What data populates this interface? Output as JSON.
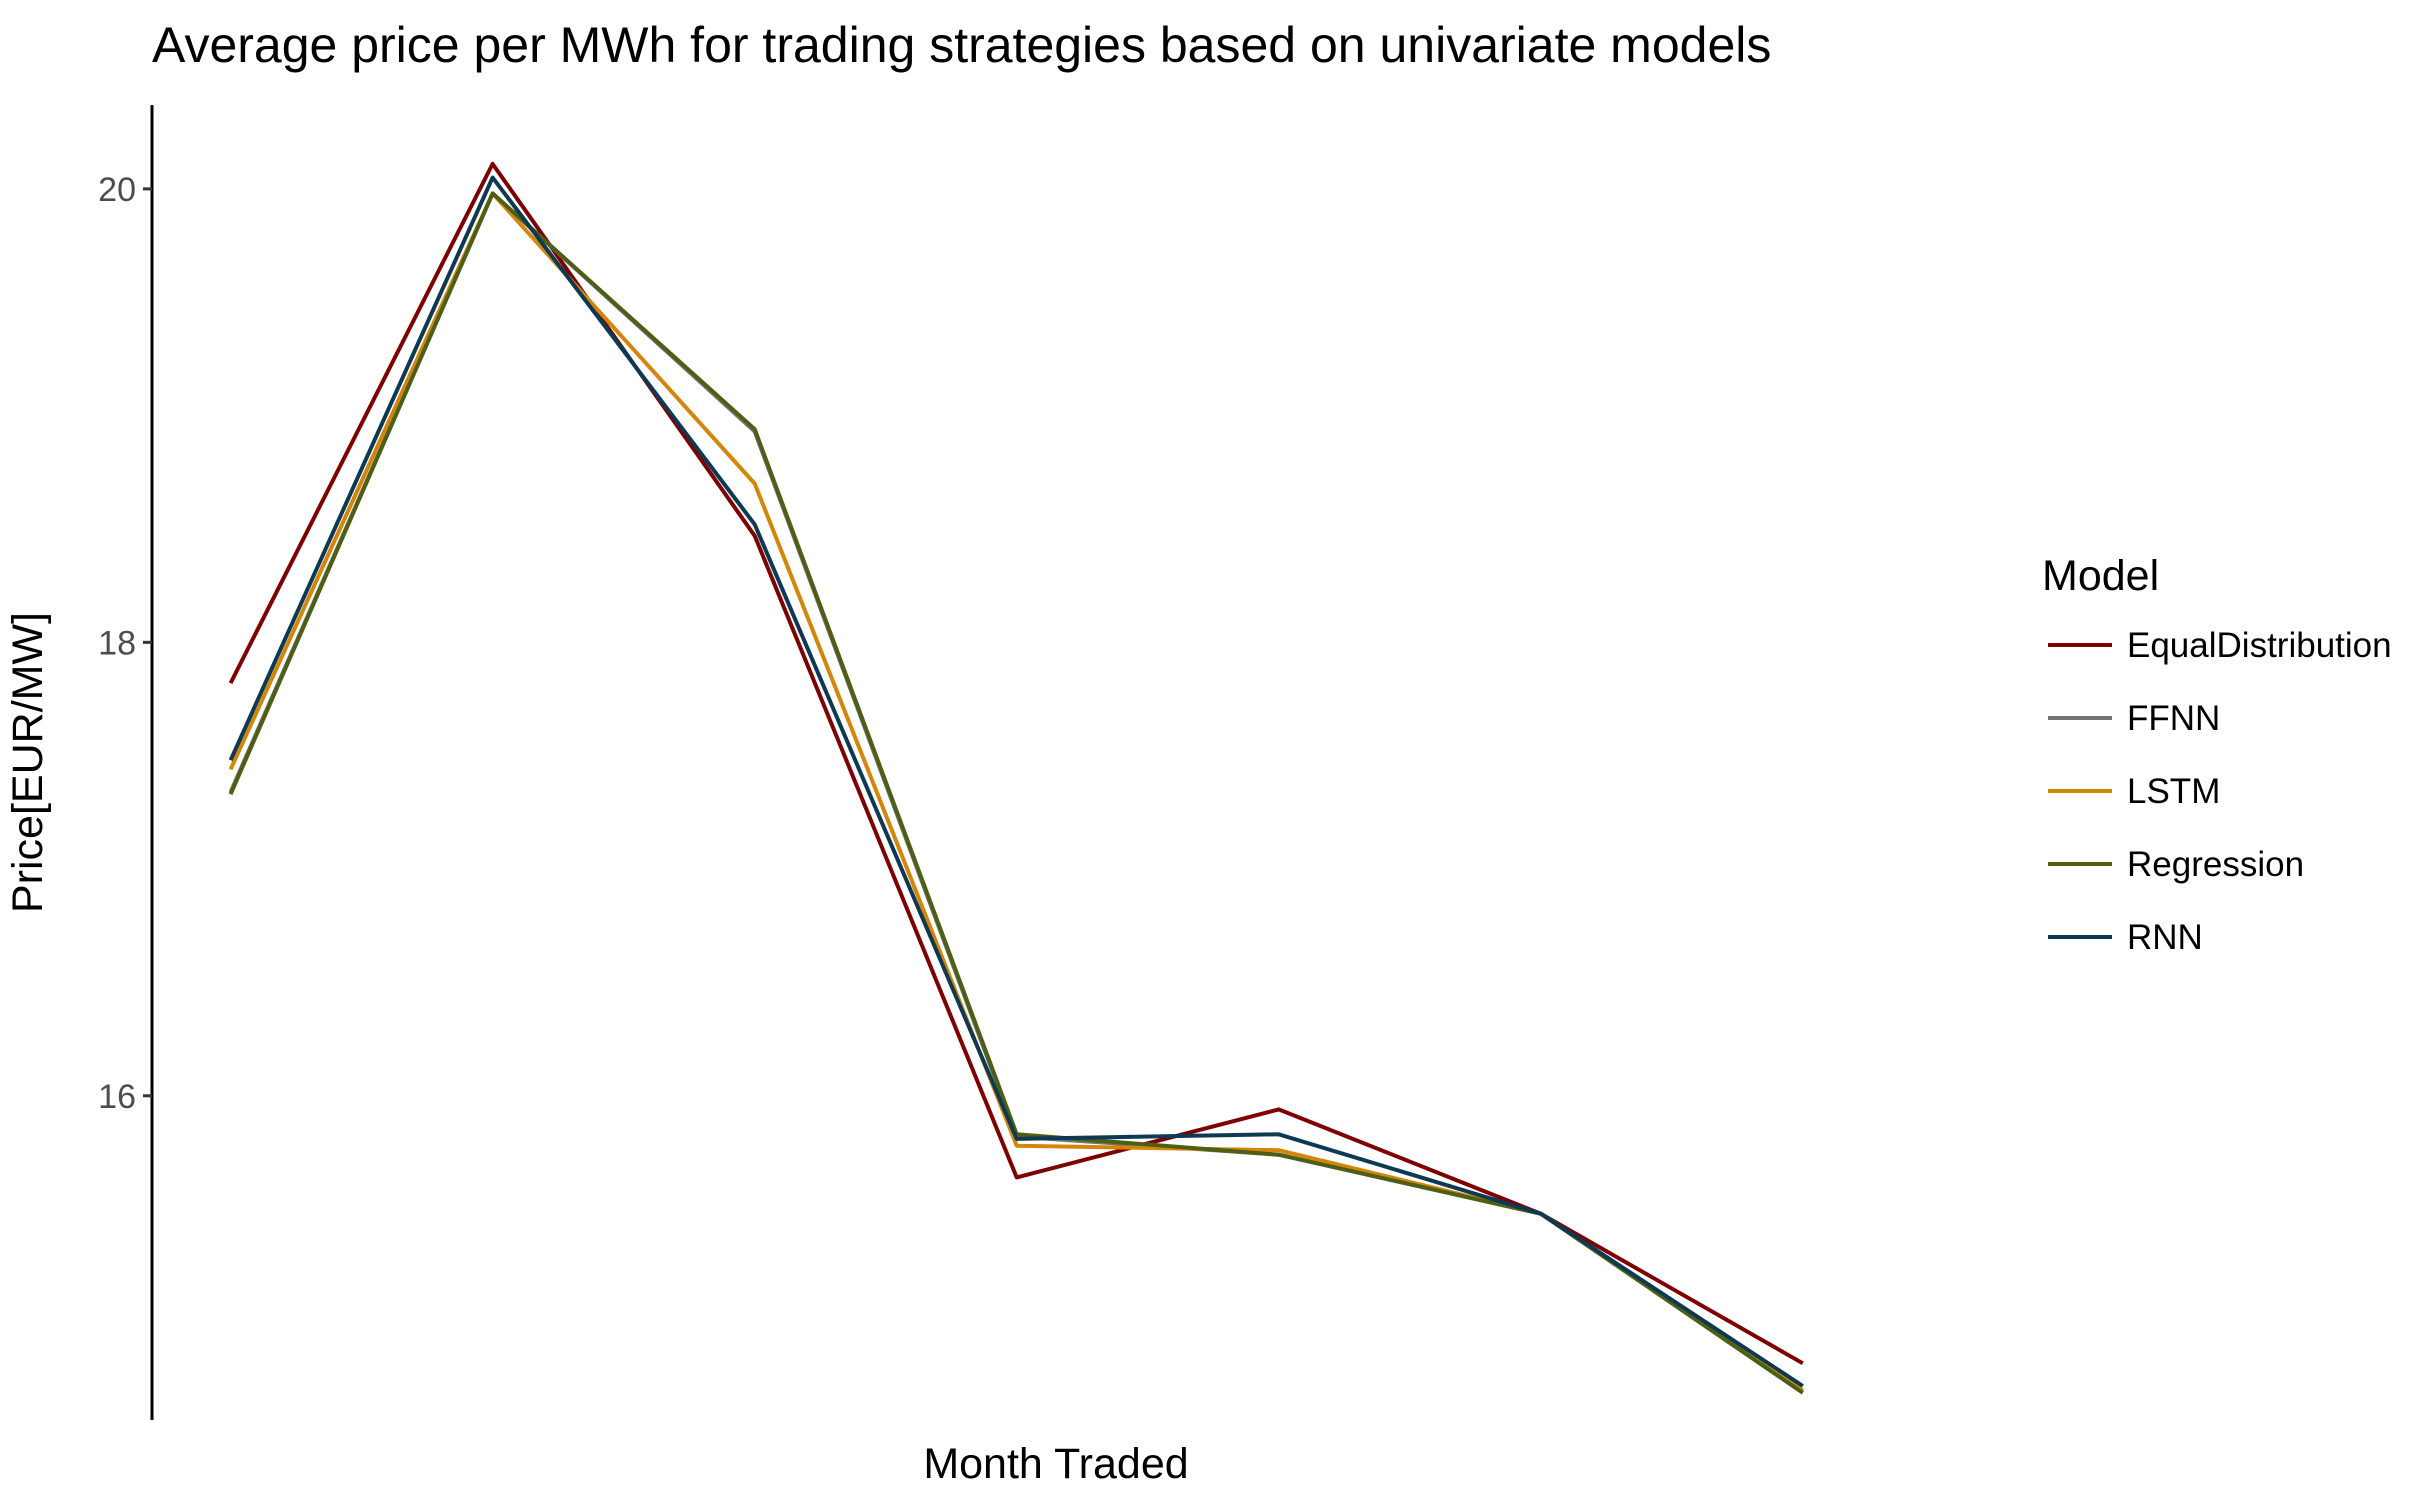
{
  "chart_data": {
    "type": "line",
    "title": "Average price per MWh for trading strategies based on univariate models",
    "xlabel": "Month Traded",
    "ylabel": "Price[EUR/MW]",
    "x": [
      1,
      2,
      3,
      4,
      5,
      6,
      7
    ],
    "xlim": [
      0.7,
      7.6
    ],
    "ylim": [
      14.57,
      20.37
    ],
    "y_ticks": [
      16,
      18,
      20
    ],
    "y_tick_labels": [
      "16",
      "18",
      "20"
    ],
    "grid": false,
    "legend": {
      "title": "Model",
      "position": "right"
    },
    "series": [
      {
        "name": "EqualDistribution",
        "color": "#7f0000",
        "values": [
          17.82,
          20.11,
          18.47,
          15.64,
          15.94,
          15.48,
          14.82
        ]
      },
      {
        "name": "FFNN",
        "color": "#737373",
        "values": [
          17.34,
          19.98,
          18.93,
          15.82,
          15.74,
          15.48,
          14.7
        ]
      },
      {
        "name": "LSTM",
        "color": "#d4860b",
        "values": [
          17.44,
          19.98,
          18.7,
          15.78,
          15.76,
          15.48,
          14.7
        ]
      },
      {
        "name": "Regression",
        "color": "#4d5f14",
        "values": [
          17.33,
          19.98,
          18.94,
          15.83,
          15.74,
          15.48,
          14.69
        ]
      },
      {
        "name": "RNN",
        "color": "#0d3a52",
        "values": [
          17.48,
          20.05,
          18.52,
          15.81,
          15.83,
          15.48,
          14.72
        ]
      }
    ]
  }
}
